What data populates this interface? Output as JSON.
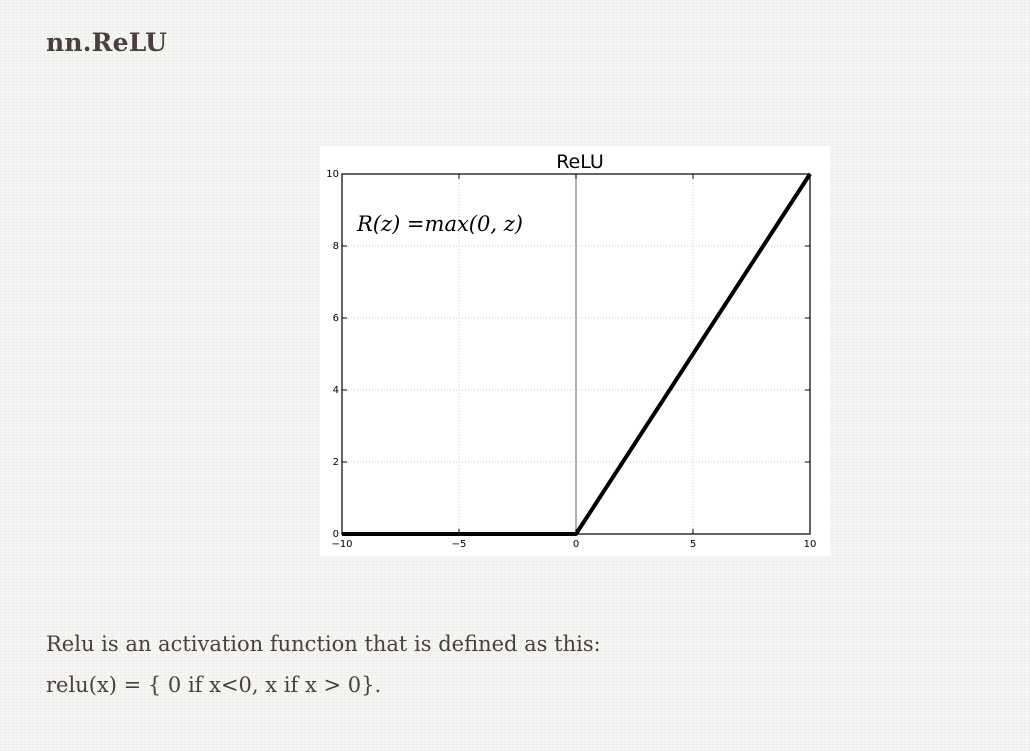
{
  "heading": "nn.ReLU",
  "paragraph": {
    "line1": "Relu is an activation function that is defined as this:",
    "line2": "relu(x) = { 0 if x<0, x if x > 0}."
  },
  "chart_data": {
    "type": "line",
    "title": "ReLU",
    "annotation": "R(z) =max(0,  z)",
    "xlabel": "",
    "ylabel": "",
    "xlim": [
      -10,
      10
    ],
    "ylim": [
      0,
      10
    ],
    "xticks": [
      -10,
      -5,
      0,
      5,
      10
    ],
    "xtick_labels": [
      "−10",
      "−5",
      "0",
      "5",
      "10"
    ],
    "yticks": [
      0,
      2,
      4,
      6,
      8,
      10
    ],
    "ytick_labels": [
      "0",
      "2",
      "4",
      "6",
      "8",
      "10"
    ],
    "grid": true,
    "vertical_line_at_x": 0,
    "series": [
      {
        "x": [
          -10,
          0,
          10
        ],
        "y": [
          0,
          0,
          10
        ],
        "color": "#000000"
      }
    ]
  }
}
